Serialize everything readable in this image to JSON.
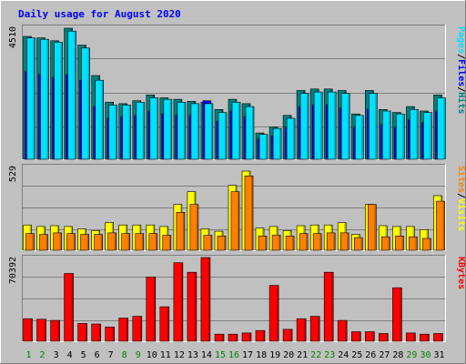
{
  "chart_data": {
    "title": "Daily usage for August 2020",
    "days": [
      "1",
      "2",
      "3",
      "4",
      "5",
      "6",
      "7",
      "8",
      "9",
      "10",
      "11",
      "12",
      "13",
      "14",
      "15",
      "16",
      "17",
      "18",
      "19",
      "20",
      "21",
      "22",
      "23",
      "24",
      "25",
      "26",
      "27",
      "28",
      "29",
      "30",
      "31"
    ],
    "weekend_days": [
      1,
      2,
      8,
      9,
      15,
      16,
      22,
      23,
      29,
      30
    ],
    "panels": [
      {
        "type": "bar",
        "max_label": "4510",
        "ymax": 4510,
        "series": [
          {
            "name": "Hits",
            "color": "#008080",
            "values": [
              4200,
              4150,
              4050,
              4480,
              3900,
              2860,
              1950,
              1900,
              2000,
              2200,
              2100,
              2050,
              1980,
              1950,
              1700,
              2050,
              1900,
              900,
              1100,
              1500,
              2350,
              2400,
              2400,
              2350,
              1550,
              2350,
              1700,
              1600,
              1800,
              1650,
              2200
            ]
          },
          {
            "name": "Files",
            "color": "#0000ff",
            "values": [
              3000,
              2900,
              2800,
              2900,
              2700,
              1800,
              1400,
              1450,
              1500,
              1650,
              1550,
              1500,
              1500,
              2000,
              1300,
              1650,
              1450,
              700,
              800,
              1100,
              1800,
              1850,
              1850,
              1750,
              1100,
              1700,
              1200,
              1100,
              1350,
              1250,
              1650
            ]
          },
          {
            "name": "Pages",
            "color": "#00e0ff",
            "values": [
              4150,
              4100,
              4000,
              4380,
              3800,
              2700,
              1850,
              1850,
              1950,
              2100,
              2050,
              1950,
              1900,
              1900,
              1600,
              1950,
              1800,
              850,
              1050,
              1400,
              2250,
              2300,
              2300,
              2250,
              1500,
              2250,
              1650,
              1550,
              1700,
              1600,
              2100
            ]
          }
        ],
        "axis_labels": [
          {
            "text": "Pages",
            "color": "#00e0ff"
          },
          {
            "text": "/",
            "color": "#000000"
          },
          {
            "text": "Files",
            "color": "#0000ff"
          },
          {
            "text": "/",
            "color": "#000000"
          },
          {
            "text": "Hits",
            "color": "#008080"
          }
        ]
      },
      {
        "type": "bar",
        "max_label": "529",
        "ymax": 529,
        "series": [
          {
            "name": "Visits",
            "color": "#ffff00",
            "values": [
              160,
              150,
              155,
              150,
              135,
              125,
              175,
              160,
              160,
              160,
              150,
              290,
              370,
              135,
              120,
              410,
              500,
              140,
              150,
              125,
              155,
              160,
              160,
              175,
              100,
              290,
              155,
              150,
              150,
              130,
              345
            ]
          },
          {
            "name": "Sites",
            "color": "#ff8000",
            "values": [
              105,
              100,
              110,
              105,
              100,
              100,
              110,
              105,
              105,
              105,
              95,
              240,
              290,
              95,
              90,
              370,
              470,
              90,
              95,
              90,
              105,
              105,
              110,
              110,
              80,
              290,
              85,
              90,
              85,
              75,
              310
            ]
          }
        ],
        "axis_labels": [
          {
            "text": "Sites",
            "color": "#ff8000"
          },
          {
            "text": "/",
            "color": "#000000"
          },
          {
            "text": "Visits",
            "color": "#ffff00"
          }
        ]
      },
      {
        "type": "bar",
        "max_label": "70392",
        "ymax": 70392,
        "series": [
          {
            "name": "KBytes",
            "color": "#ff0000",
            "values": [
              19000,
              18500,
              17500,
              57000,
              15000,
              14500,
              12000,
              19500,
              21000,
              54000,
              29000,
              66000,
              58000,
              70392,
              6000,
              6000,
              7000,
              9000,
              47000,
              10000,
              19000,
              21000,
              58000,
              17500,
              8000,
              8000,
              6500,
              45000,
              7000,
              6000,
              6500
            ]
          }
        ],
        "axis_labels": [
          {
            "text": "KBytes",
            "color": "#ff0000"
          }
        ]
      }
    ]
  },
  "colors": {
    "background": "#c0c0c0",
    "title": "#0000ff",
    "weekday_label": "#000000",
    "weekend_label": "#008000",
    "grid": "#808080"
  }
}
